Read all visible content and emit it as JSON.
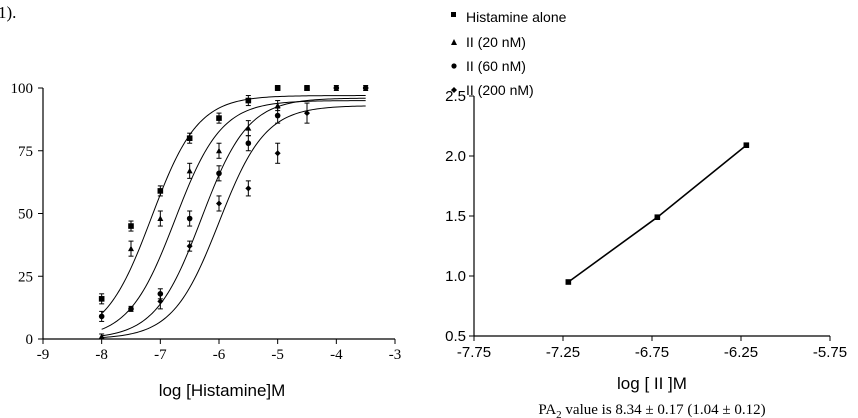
{
  "header_fragment": "1).",
  "legend": {
    "entries": [
      {
        "label": "Histamine alone",
        "marker": "square"
      },
      {
        "label": "II (20 nM)",
        "marker": "triangle"
      },
      {
        "label": "II (60 nM)",
        "marker": "circle"
      },
      {
        "label": "II (200 nM)",
        "marker": "diamond"
      }
    ]
  },
  "chart_data": [
    {
      "type": "scatter",
      "title": "",
      "xlabel": "log [Histamine]M",
      "ylabel": "",
      "xlim": [
        -9,
        -3
      ],
      "ylim": [
        0,
        100
      ],
      "xticks": [
        -9,
        -8,
        -7,
        -6,
        -5,
        -4,
        -3
      ],
      "yticks": [
        0,
        25,
        50,
        75,
        100
      ],
      "grid": false,
      "fit": "sigmoidal",
      "series": [
        {
          "name": "Histamine alone",
          "marker": "square",
          "points": [
            {
              "x": -8.0,
              "y": 16,
              "err": 2
            },
            {
              "x": -7.5,
              "y": 45,
              "err": 2
            },
            {
              "x": -7.0,
              "y": 59,
              "err": 2
            },
            {
              "x": -6.5,
              "y": 80,
              "err": 2
            },
            {
              "x": -6.0,
              "y": 88,
              "err": 2
            },
            {
              "x": -5.5,
              "y": 95,
              "err": 2
            },
            {
              "x": -5.0,
              "y": 100,
              "err": 1
            },
            {
              "x": -4.5,
              "y": 100,
              "err": 1
            }
          ],
          "curve": {
            "bottom": 0,
            "top": 97,
            "logEC50": -7.15,
            "hill": 1.1
          }
        },
        {
          "name": "II (20 nM)",
          "marker": "triangle",
          "points": [
            {
              "x": -8.0,
              "y": 1,
              "err": 1
            },
            {
              "x": -7.5,
              "y": 36,
              "err": 3
            },
            {
              "x": -7.0,
              "y": 48,
              "err": 3
            },
            {
              "x": -6.5,
              "y": 67,
              "err": 3
            },
            {
              "x": -6.0,
              "y": 75,
              "err": 3
            },
            {
              "x": -5.5,
              "y": 84,
              "err": 3
            },
            {
              "x": -5.0,
              "y": 93,
              "err": 2
            },
            {
              "x": -4.5,
              "y": 100,
              "err": 1
            }
          ],
          "curve": {
            "bottom": 0,
            "top": 95,
            "logEC50": -6.75,
            "hill": 1.1
          }
        },
        {
          "name": "II (60 nM)",
          "marker": "circle",
          "points": [
            {
              "x": -8.0,
              "y": 9,
              "err": 2
            },
            {
              "x": -7.5,
              "y": 12,
              "err": 1
            },
            {
              "x": -7.0,
              "y": 18,
              "err": 2
            },
            {
              "x": -6.5,
              "y": 48,
              "err": 3
            },
            {
              "x": -6.0,
              "y": 66,
              "err": 3
            },
            {
              "x": -5.5,
              "y": 78,
              "err": 3
            },
            {
              "x": -5.0,
              "y": 89,
              "err": 3
            },
            {
              "x": -4.0,
              "y": 100,
              "err": 1
            },
            {
              "x": -3.5,
              "y": 100,
              "err": 1
            }
          ],
          "curve": {
            "bottom": 0,
            "top": 96,
            "logEC50": -6.3,
            "hill": 1.1
          }
        },
        {
          "name": "II (200 nM)",
          "marker": "diamond",
          "points": [
            {
              "x": -7.0,
              "y": 15,
              "err": 3
            },
            {
              "x": -6.5,
              "y": 37,
              "err": 2
            },
            {
              "x": -6.0,
              "y": 54,
              "err": 3
            },
            {
              "x": -5.5,
              "y": 60,
              "err": 3
            },
            {
              "x": -5.0,
              "y": 74,
              "err": 4
            },
            {
              "x": -4.5,
              "y": 90,
              "err": 4
            }
          ],
          "curve": {
            "bottom": 0,
            "top": 93,
            "logEC50": -6.0,
            "hill": 1.1
          }
        }
      ]
    },
    {
      "type": "line",
      "title": "",
      "xlabel": "log [ II ]M",
      "ylabel": "",
      "xlim": [
        -7.75,
        -5.75
      ],
      "ylim": [
        0.5,
        2.5
      ],
      "xticks": [
        "-7.75",
        "-7.25",
        "-6.75",
        "-6.25",
        "-5.75"
      ],
      "yticks": [
        "0.5",
        "1.0",
        "1.5",
        "2.0",
        "2.5"
      ],
      "grid": false,
      "series": [
        {
          "marker": "square",
          "points": [
            {
              "x": -7.22,
              "y": 0.95
            },
            {
              "x": -6.72,
              "y": 1.49
            },
            {
              "x": -6.22,
              "y": 2.09
            }
          ]
        }
      ],
      "annotation": {
        "prefix": "PA",
        "subscript": "2",
        "suffix": " value is 8.34 ± 0.17 (1.04 ± 0.12)"
      }
    }
  ]
}
